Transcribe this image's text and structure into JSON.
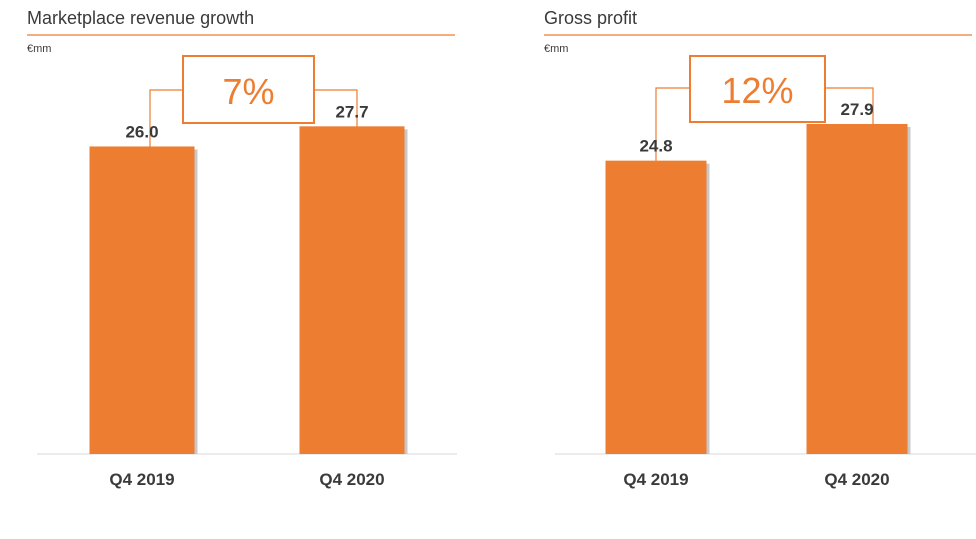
{
  "colors": {
    "accent": "#ED7D31",
    "text": "#3a3a3a",
    "baseline": "#d9d9d9",
    "bar_shadow": "#c8c8c8"
  },
  "chart_data": [
    {
      "type": "bar",
      "title": "Marketplace revenue growth",
      "unit": "€mm",
      "growth_label": "7%",
      "categories": [
        "Q4 2019",
        "Q4 2020"
      ],
      "values": [
        26.0,
        27.7
      ],
      "value_labels": [
        "26.0",
        "27.7"
      ],
      "ylim": [
        0,
        35
      ]
    },
    {
      "type": "bar",
      "title": "Gross profit",
      "unit": "€mm",
      "growth_label": "12%",
      "categories": [
        "Q4 2019",
        "Q4 2020"
      ],
      "values": [
        24.8,
        27.9
      ],
      "value_labels": [
        "24.8",
        "27.9"
      ],
      "ylim": [
        0,
        35
      ]
    }
  ]
}
